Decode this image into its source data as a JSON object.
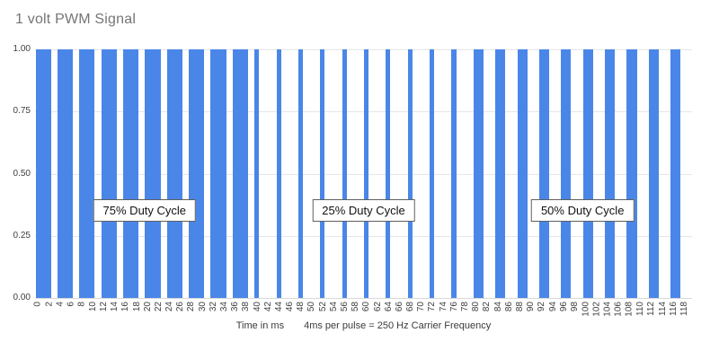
{
  "title": "1 volt PWM Signal",
  "colors": {
    "bar": "#4a86e8",
    "gridline": "#e6e6e6",
    "baseline": "#d9d9d9",
    "title_text": "#757575",
    "axis_text": "#3f3f3f",
    "annotation_border": "#5f5f5f",
    "annotation_text": "#111111"
  },
  "y_axis": {
    "ticks": [
      "0.00",
      "0.25",
      "0.50",
      "0.75",
      "1.00"
    ],
    "min": 0,
    "max": 1
  },
  "x_axis": {
    "tick_labels": [
      "0",
      "2",
      "4",
      "6",
      "8",
      "10",
      "12",
      "14",
      "16",
      "18",
      "20",
      "22",
      "24",
      "26",
      "28",
      "30",
      "32",
      "34",
      "36",
      "38",
      "40",
      "42",
      "44",
      "46",
      "48",
      "50",
      "52",
      "54",
      "56",
      "58",
      "60",
      "62",
      "64",
      "66",
      "68",
      "70",
      "72",
      "74",
      "76",
      "78",
      "80",
      "82",
      "84",
      "86",
      "88",
      "90",
      "92",
      "94",
      "96",
      "98",
      "100",
      "102",
      "104",
      "106",
      "108",
      "110",
      "112",
      "114",
      "116",
      "118"
    ]
  },
  "axis_title": {
    "part1": "Time in ms",
    "part2": "4ms per pulse = 250 Hz Carrier Frequency"
  },
  "annotations": [
    {
      "label": "75% Duty Cycle",
      "center_ms": 20
    },
    {
      "label": "25% Duty Cycle",
      "center_ms": 60
    },
    {
      "label": "50% Duty Cycle",
      "center_ms": 100
    }
  ],
  "chart_data": {
    "type": "bar",
    "title": "1 volt PWM Signal",
    "xlabel": "Time in ms   4ms per pulse = 250 Hz Carrier Frequency",
    "ylabel": "",
    "ylim": [
      0,
      1
    ],
    "x_unit": "ms",
    "x_range": [
      0,
      119
    ],
    "x_step": 1,
    "grid": true,
    "values": [
      1,
      1,
      1,
      0,
      1,
      1,
      1,
      0,
      1,
      1,
      1,
      0,
      1,
      1,
      1,
      0,
      1,
      1,
      1,
      0,
      1,
      1,
      1,
      0,
      1,
      1,
      1,
      0,
      1,
      1,
      1,
      0,
      1,
      1,
      1,
      0,
      1,
      1,
      1,
      0,
      1,
      0,
      0,
      0,
      1,
      0,
      0,
      0,
      1,
      0,
      0,
      0,
      1,
      0,
      0,
      0,
      1,
      0,
      0,
      0,
      1,
      0,
      0,
      0,
      1,
      0,
      0,
      0,
      1,
      0,
      0,
      0,
      1,
      0,
      0,
      0,
      1,
      0,
      0,
      0,
      1,
      1,
      0,
      0,
      1,
      1,
      0,
      0,
      1,
      1,
      0,
      0,
      1,
      1,
      0,
      0,
      1,
      1,
      0,
      0,
      1,
      1,
      0,
      0,
      1,
      1,
      0,
      0,
      1,
      1,
      0,
      0,
      1,
      1,
      0,
      0,
      1,
      1,
      0,
      0
    ],
    "segments": [
      {
        "range_ms": [
          0,
          39
        ],
        "duty_cycle": "75%",
        "pattern_on_off_ms": [
          3,
          1
        ]
      },
      {
        "range_ms": [
          40,
          79
        ],
        "duty_cycle": "25%",
        "pattern_on_off_ms": [
          1,
          3
        ]
      },
      {
        "range_ms": [
          80,
          119
        ],
        "duty_cycle": "50%",
        "pattern_on_off_ms": [
          2,
          2
        ]
      }
    ],
    "pulse_period_ms": 4,
    "carrier_frequency": "250 Hz",
    "amplitude_volts": 1
  }
}
